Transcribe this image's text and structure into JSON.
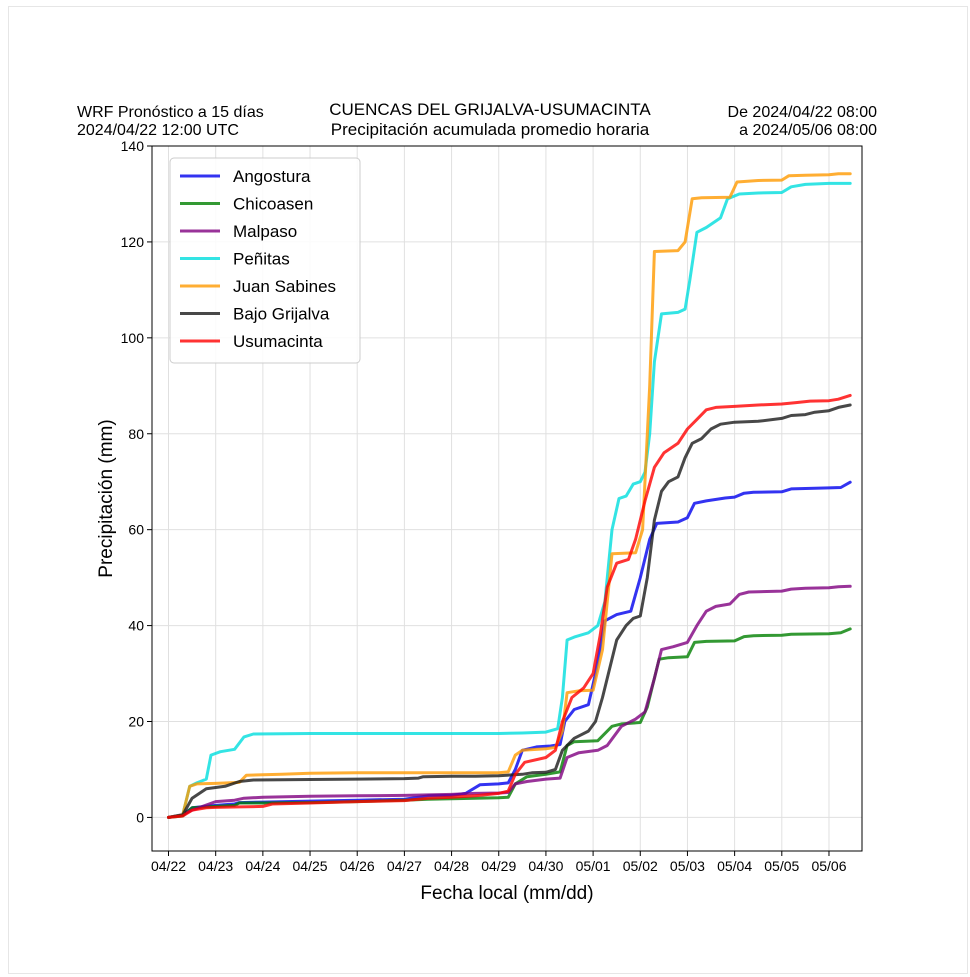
{
  "header": {
    "left_line1": "WRF Pronóstico a 15 días",
    "left_line2": "2024/04/22 12:00 UTC",
    "center_line1": "CUENCAS DEL GRIJALVA-USUMACINTA",
    "center_line2": "Precipitación acumulada promedio horaria",
    "right_line1": "De 2024/04/22 08:00",
    "right_line2": "a 2024/05/06 08:00"
  },
  "chart_data": {
    "type": "line",
    "title": "CUENCAS DEL GRIJALVA-USUMACINTA",
    "subtitle": "Precipitación acumulada promedio horaria",
    "xlabel": "Fecha local (mm/dd)",
    "ylabel": "Precipitación (mm)",
    "xlim": [
      -0.35,
      14.7
    ],
    "ylim": [
      -7,
      140
    ],
    "x_tick_labels": [
      "04/22",
      "04/23",
      "04/24",
      "04/25",
      "04/26",
      "04/27",
      "04/28",
      "04/29",
      "04/30",
      "05/01",
      "05/02",
      "05/03",
      "05/04",
      "05/05",
      "05/06"
    ],
    "y_ticks": [
      0,
      20,
      40,
      60,
      80,
      100,
      120,
      140
    ],
    "grid": true,
    "legend_position": "top-left",
    "series": [
      {
        "name": "Angostura",
        "color": "#0000ee",
        "points": [
          [
            0,
            0
          ],
          [
            0.3,
            0.5
          ],
          [
            0.5,
            2
          ],
          [
            1,
            2.5
          ],
          [
            1.4,
            2.8
          ],
          [
            1.5,
            3.1
          ],
          [
            2,
            3.2
          ],
          [
            3,
            3.4
          ],
          [
            4,
            3.6
          ],
          [
            5,
            3.8
          ],
          [
            5.5,
            4.5
          ],
          [
            6,
            4.6
          ],
          [
            6.3,
            5
          ],
          [
            6.6,
            6.8
          ],
          [
            7,
            7
          ],
          [
            7.2,
            7.2
          ],
          [
            7.35,
            10
          ],
          [
            7.5,
            14
          ],
          [
            7.8,
            14.7
          ],
          [
            8.1,
            14.9
          ],
          [
            8.3,
            15.2
          ],
          [
            8.4,
            20
          ],
          [
            8.6,
            22.5
          ],
          [
            8.9,
            23.5
          ],
          [
            9.05,
            30
          ],
          [
            9.25,
            41
          ],
          [
            9.5,
            42.3
          ],
          [
            9.8,
            43
          ],
          [
            10,
            50
          ],
          [
            10.2,
            58
          ],
          [
            10.35,
            61.3
          ],
          [
            10.8,
            61.6
          ],
          [
            11,
            62.5
          ],
          [
            11.15,
            65.5
          ],
          [
            11.4,
            66
          ],
          [
            11.8,
            66.6
          ],
          [
            12,
            66.8
          ],
          [
            12.2,
            67.6
          ],
          [
            12.4,
            67.8
          ],
          [
            13,
            67.9
          ],
          [
            13.2,
            68.5
          ],
          [
            14,
            68.7
          ],
          [
            14.25,
            68.8
          ],
          [
            14.45,
            69.9
          ]
        ]
      },
      {
        "name": "Chicoasen",
        "color": "#008000",
        "points": [
          [
            0,
            0
          ],
          [
            0.3,
            0.3
          ],
          [
            0.5,
            2
          ],
          [
            1,
            2.3
          ],
          [
            1.4,
            2.5
          ],
          [
            1.5,
            3
          ],
          [
            2,
            3
          ],
          [
            3,
            3.1
          ],
          [
            4,
            3.3
          ],
          [
            5,
            3.6
          ],
          [
            5.5,
            3.8
          ],
          [
            6,
            3.9
          ],
          [
            6.5,
            4
          ],
          [
            7,
            4.1
          ],
          [
            7.2,
            4.2
          ],
          [
            7.35,
            7
          ],
          [
            7.6,
            8.5
          ],
          [
            8,
            9
          ],
          [
            8.3,
            9.5
          ],
          [
            8.45,
            15
          ],
          [
            8.6,
            15.8
          ],
          [
            9.1,
            16
          ],
          [
            9.4,
            19
          ],
          [
            9.6,
            19.5
          ],
          [
            10,
            19.8
          ],
          [
            10.15,
            23
          ],
          [
            10.4,
            33
          ],
          [
            10.6,
            33.3
          ],
          [
            11,
            33.5
          ],
          [
            11.15,
            36.5
          ],
          [
            11.4,
            36.7
          ],
          [
            12,
            36.8
          ],
          [
            12.2,
            37.7
          ],
          [
            12.4,
            37.9
          ],
          [
            13,
            38
          ],
          [
            13.2,
            38.2
          ],
          [
            14,
            38.3
          ],
          [
            14.25,
            38.5
          ],
          [
            14.45,
            39.3
          ]
        ]
      },
      {
        "name": "Malpaso",
        "color": "#800080",
        "points": [
          [
            0,
            0
          ],
          [
            0.3,
            0.6
          ],
          [
            0.5,
            1.5
          ],
          [
            1,
            3.3
          ],
          [
            1.4,
            3.6
          ],
          [
            1.6,
            4
          ],
          [
            2,
            4.2
          ],
          [
            3,
            4.4
          ],
          [
            4,
            4.5
          ],
          [
            5,
            4.6
          ],
          [
            5.5,
            4.7
          ],
          [
            6,
            4.8
          ],
          [
            6.5,
            5
          ],
          [
            7,
            5.1
          ],
          [
            7.2,
            5.2
          ],
          [
            7.35,
            7
          ],
          [
            7.6,
            7.5
          ],
          [
            8,
            8
          ],
          [
            8.3,
            8.2
          ],
          [
            8.45,
            12.5
          ],
          [
            8.7,
            13.5
          ],
          [
            9.1,
            14
          ],
          [
            9.3,
            15
          ],
          [
            9.6,
            19
          ],
          [
            9.9,
            20.5
          ],
          [
            10.1,
            22
          ],
          [
            10.3,
            29
          ],
          [
            10.45,
            35
          ],
          [
            10.7,
            35.6
          ],
          [
            11,
            36.5
          ],
          [
            11.2,
            40
          ],
          [
            11.4,
            43
          ],
          [
            11.6,
            44
          ],
          [
            11.9,
            44.5
          ],
          [
            12.1,
            46.5
          ],
          [
            12.3,
            47
          ],
          [
            13,
            47.2
          ],
          [
            13.2,
            47.6
          ],
          [
            13.5,
            47.8
          ],
          [
            14,
            47.9
          ],
          [
            14.2,
            48.1
          ],
          [
            14.45,
            48.2
          ]
        ]
      },
      {
        "name": "Peñitas",
        "color": "#00dddd",
        "points": [
          [
            0,
            0
          ],
          [
            0.3,
            0.5
          ],
          [
            0.45,
            6.5
          ],
          [
            0.6,
            7.2
          ],
          [
            0.8,
            8
          ],
          [
            0.9,
            13
          ],
          [
            1.1,
            13.7
          ],
          [
            1.4,
            14.2
          ],
          [
            1.6,
            16.8
          ],
          [
            1.8,
            17.4
          ],
          [
            3,
            17.5
          ],
          [
            5,
            17.5
          ],
          [
            7,
            17.5
          ],
          [
            7.5,
            17.6
          ],
          [
            8,
            17.8
          ],
          [
            8.25,
            18.5
          ],
          [
            8.35,
            25
          ],
          [
            8.45,
            37
          ],
          [
            8.6,
            37.6
          ],
          [
            8.9,
            38.5
          ],
          [
            9.1,
            40
          ],
          [
            9.25,
            45
          ],
          [
            9.4,
            60
          ],
          [
            9.55,
            66.5
          ],
          [
            9.7,
            67
          ],
          [
            9.85,
            69.5
          ],
          [
            10,
            70
          ],
          [
            10.1,
            72
          ],
          [
            10.2,
            80
          ],
          [
            10.3,
            95
          ],
          [
            10.45,
            105
          ],
          [
            10.8,
            105.3
          ],
          [
            10.95,
            106
          ],
          [
            11.05,
            112
          ],
          [
            11.2,
            122
          ],
          [
            11.4,
            123
          ],
          [
            11.7,
            125
          ],
          [
            11.85,
            129
          ],
          [
            12.1,
            130
          ],
          [
            12.5,
            130.2
          ],
          [
            13,
            130.3
          ],
          [
            13.2,
            131.5
          ],
          [
            13.5,
            132
          ],
          [
            14,
            132.2
          ],
          [
            14.45,
            132.2
          ]
        ]
      },
      {
        "name": "Juan Sabines",
        "color": "#ff9a00",
        "points": [
          [
            0,
            0
          ],
          [
            0.3,
            0.5
          ],
          [
            0.45,
            6.5
          ],
          [
            0.6,
            7
          ],
          [
            1,
            7.1
          ],
          [
            1.5,
            7.3
          ],
          [
            1.65,
            8.8
          ],
          [
            2,
            8.9
          ],
          [
            2.4,
            9
          ],
          [
            3,
            9.2
          ],
          [
            4,
            9.3
          ],
          [
            5,
            9.3
          ],
          [
            6,
            9.3
          ],
          [
            7,
            9.3
          ],
          [
            7.2,
            9.5
          ],
          [
            7.35,
            13
          ],
          [
            7.5,
            14
          ],
          [
            8,
            14.3
          ],
          [
            8.2,
            14.6
          ],
          [
            8.35,
            18
          ],
          [
            8.45,
            26
          ],
          [
            8.7,
            26.4
          ],
          [
            9,
            26.5
          ],
          [
            9.2,
            35
          ],
          [
            9.4,
            55
          ],
          [
            9.9,
            55.2
          ],
          [
            10.05,
            60
          ],
          [
            10.2,
            90
          ],
          [
            10.3,
            118
          ],
          [
            10.8,
            118.2
          ],
          [
            10.95,
            120
          ],
          [
            11.1,
            129
          ],
          [
            11.3,
            129.2
          ],
          [
            11.9,
            129.3
          ],
          [
            12.05,
            132.5
          ],
          [
            12.5,
            132.8
          ],
          [
            13,
            132.9
          ],
          [
            13.15,
            133.8
          ],
          [
            13.5,
            133.9
          ],
          [
            14,
            134
          ],
          [
            14.2,
            134.2
          ],
          [
            14.45,
            134.2
          ]
        ]
      },
      {
        "name": "Bajo Grijalva",
        "color": "#1a1a1a",
        "points": [
          [
            0,
            0
          ],
          [
            0.3,
            0.5
          ],
          [
            0.5,
            4
          ],
          [
            0.8,
            6
          ],
          [
            1.2,
            6.5
          ],
          [
            1.5,
            7.5
          ],
          [
            1.8,
            7.8
          ],
          [
            3,
            7.9
          ],
          [
            4,
            8
          ],
          [
            5,
            8.1
          ],
          [
            5.3,
            8.2
          ],
          [
            5.4,
            8.5
          ],
          [
            6,
            8.6
          ],
          [
            6.5,
            8.6
          ],
          [
            7,
            8.7
          ],
          [
            7.5,
            9
          ],
          [
            7.7,
            9.3
          ],
          [
            8,
            9.4
          ],
          [
            8.2,
            10
          ],
          [
            8.35,
            14
          ],
          [
            8.6,
            16.5
          ],
          [
            8.9,
            18
          ],
          [
            9.05,
            20
          ],
          [
            9.2,
            25
          ],
          [
            9.5,
            37
          ],
          [
            9.7,
            40
          ],
          [
            9.85,
            41.5
          ],
          [
            10,
            42
          ],
          [
            10.15,
            50
          ],
          [
            10.3,
            62
          ],
          [
            10.45,
            68
          ],
          [
            10.6,
            70
          ],
          [
            10.8,
            71
          ],
          [
            10.95,
            75
          ],
          [
            11.1,
            78
          ],
          [
            11.3,
            79
          ],
          [
            11.5,
            81
          ],
          [
            11.7,
            82
          ],
          [
            12,
            82.4
          ],
          [
            12.5,
            82.6
          ],
          [
            13,
            83.2
          ],
          [
            13.2,
            83.8
          ],
          [
            13.5,
            84
          ],
          [
            13.7,
            84.5
          ],
          [
            14,
            84.8
          ],
          [
            14.2,
            85.5
          ],
          [
            14.45,
            86
          ]
        ]
      },
      {
        "name": "Usumacinta",
        "color": "#ff0000",
        "points": [
          [
            0,
            0
          ],
          [
            0.3,
            0.3
          ],
          [
            0.5,
            1.5
          ],
          [
            0.8,
            2
          ],
          [
            1,
            2.1
          ],
          [
            1.5,
            2.2
          ],
          [
            2,
            2.3
          ],
          [
            2.2,
            2.8
          ],
          [
            3,
            3
          ],
          [
            4,
            3.3
          ],
          [
            5,
            3.5
          ],
          [
            5.5,
            4
          ],
          [
            6,
            4.2
          ],
          [
            6.5,
            4.5
          ],
          [
            7,
            5
          ],
          [
            7.2,
            5.5
          ],
          [
            7.35,
            9
          ],
          [
            7.55,
            11.5
          ],
          [
            8,
            12.5
          ],
          [
            8.2,
            14
          ],
          [
            8.35,
            20
          ],
          [
            8.55,
            25
          ],
          [
            8.8,
            27
          ],
          [
            9,
            30
          ],
          [
            9.15,
            38
          ],
          [
            9.3,
            48
          ],
          [
            9.5,
            53
          ],
          [
            9.75,
            53.8
          ],
          [
            9.9,
            58
          ],
          [
            10.1,
            66
          ],
          [
            10.3,
            73
          ],
          [
            10.5,
            76
          ],
          [
            10.8,
            78
          ],
          [
            11,
            81
          ],
          [
            11.2,
            83
          ],
          [
            11.4,
            85
          ],
          [
            11.6,
            85.5
          ],
          [
            12,
            85.7
          ],
          [
            12.5,
            86
          ],
          [
            13,
            86.2
          ],
          [
            13.3,
            86.5
          ],
          [
            13.6,
            86.8
          ],
          [
            14,
            86.9
          ],
          [
            14.2,
            87.2
          ],
          [
            14.45,
            88
          ]
        ]
      }
    ]
  }
}
